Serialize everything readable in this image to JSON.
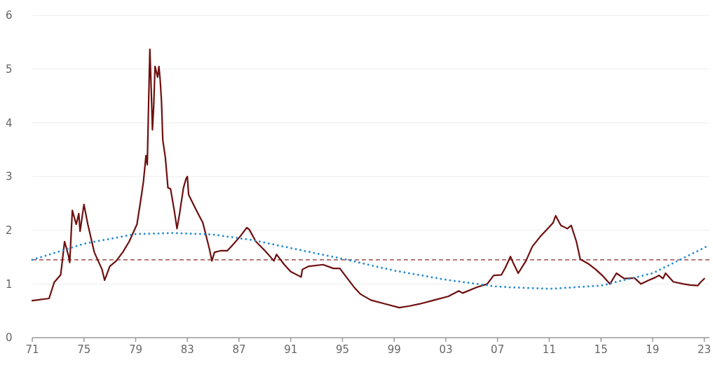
{
  "chart_data": {
    "type": "line",
    "xlim": [
      1971,
      2023.4
    ],
    "ylim": [
      0,
      6
    ],
    "yticks": [
      0,
      1,
      2,
      3,
      4,
      5,
      6
    ],
    "xticks": [
      {
        "value": 1971,
        "label": "71"
      },
      {
        "value": 1975,
        "label": "75"
      },
      {
        "value": 1979,
        "label": "79"
      },
      {
        "value": 1983,
        "label": "83"
      },
      {
        "value": 1987,
        "label": "87"
      },
      {
        "value": 1991,
        "label": "91"
      },
      {
        "value": 1995,
        "label": "95"
      },
      {
        "value": 1999,
        "label": "99"
      },
      {
        "value": 2003,
        "label": "03"
      },
      {
        "value": 2007,
        "label": "07"
      },
      {
        "value": 2011,
        "label": "11"
      },
      {
        "value": 2015,
        "label": "15"
      },
      {
        "value": 2019,
        "label": "19"
      },
      {
        "value": 2023,
        "label": "23"
      }
    ],
    "grid": "y",
    "ref_lines": [
      {
        "axis": "y",
        "value": 1.45,
        "color": "#8b2a2a",
        "line_style": "dashed"
      }
    ],
    "series": [
      {
        "color": "#6e0f0f",
        "line_style": "solid",
        "x": [
          1971.0,
          1972.3,
          1972.7,
          1973.2,
          1973.5,
          1973.8,
          1973.9,
          1974.1,
          1974.4,
          1974.6,
          1974.7,
          1975.0,
          1975.3,
          1975.8,
          1976.4,
          1976.6,
          1977.0,
          1977.5,
          1978.0,
          1978.5,
          1979.1,
          1979.4,
          1979.6,
          1979.8,
          1979.9,
          1980.0,
          1980.1,
          1980.2,
          1980.3,
          1980.4,
          1980.5,
          1980.7,
          1980.8,
          1980.9,
          1981.0,
          1981.1,
          1981.3,
          1981.5,
          1981.7,
          1982.0,
          1982.2,
          1982.4,
          1982.7,
          1982.9,
          1983.0,
          1983.1,
          1983.7,
          1984.2,
          1984.7,
          1984.9,
          1985.1,
          1985.6,
          1986.1,
          1986.6,
          1987.1,
          1987.6,
          1987.8,
          1988.3,
          1989.0,
          1989.7,
          1989.9,
          1990.5,
          1991.0,
          1991.8,
          1991.9,
          1992.4,
          1993.5,
          1994.3,
          1994.8,
          1995.3,
          1995.9,
          1996.4,
          1997.2,
          1998.3,
          1999.4,
          2000.2,
          2001.0,
          2002.1,
          2003.2,
          2004.0,
          2004.3,
          2005.4,
          2006.2,
          2006.7,
          2007.3,
          2007.6,
          2008.0,
          2008.2,
          2008.6,
          2009.2,
          2009.7,
          2010.3,
          2010.8,
          2011.3,
          2011.5,
          2011.9,
          2012.4,
          2012.7,
          2013.1,
          2013.4,
          2014.0,
          2014.6,
          2015.1,
          2015.7,
          2016.2,
          2016.8,
          2017.6,
          2018.1,
          2018.7,
          2019.2,
          2019.5,
          2019.8,
          2020.0,
          2020.6,
          2021.4,
          2021.9,
          2022.5,
          2022.7,
          2023.0
        ],
        "values": [
          0.69,
          0.73,
          1.03,
          1.17,
          1.79,
          1.53,
          1.4,
          2.37,
          2.11,
          2.31,
          1.98,
          2.48,
          2.11,
          1.59,
          1.27,
          1.07,
          1.33,
          1.43,
          1.59,
          1.79,
          2.11,
          2.57,
          2.9,
          3.39,
          3.22,
          4.33,
          5.37,
          4.66,
          3.87,
          4.33,
          5.05,
          4.85,
          5.05,
          4.79,
          4.4,
          3.68,
          3.35,
          2.79,
          2.77,
          2.35,
          2.03,
          2.31,
          2.79,
          2.96,
          3.0,
          2.66,
          2.37,
          2.14,
          1.66,
          1.43,
          1.59,
          1.62,
          1.62,
          1.75,
          1.89,
          2.05,
          2.01,
          1.79,
          1.62,
          1.43,
          1.55,
          1.36,
          1.23,
          1.13,
          1.27,
          1.33,
          1.36,
          1.29,
          1.29,
          1.13,
          0.94,
          0.81,
          0.7,
          0.63,
          0.56,
          0.59,
          0.63,
          0.7,
          0.77,
          0.87,
          0.83,
          0.94,
          1.0,
          1.16,
          1.17,
          1.3,
          1.51,
          1.4,
          1.2,
          1.43,
          1.7,
          1.88,
          2.01,
          2.14,
          2.27,
          2.09,
          2.03,
          2.09,
          1.79,
          1.46,
          1.38,
          1.27,
          1.16,
          1.0,
          1.2,
          1.1,
          1.11,
          1.0,
          1.07,
          1.12,
          1.16,
          1.1,
          1.2,
          1.04,
          1.0,
          0.98,
          0.97,
          1.03,
          1.1
        ]
      },
      {
        "color": "#2a8fd0",
        "line_style": "dotted",
        "x": [
          1971,
          1975,
          1979,
          1982,
          1985,
          1988,
          1991,
          1995,
          1999,
          2003,
          2007,
          2011,
          2015,
          2019,
          2023.2
        ],
        "values": [
          1.45,
          1.75,
          1.93,
          1.95,
          1.92,
          1.82,
          1.67,
          1.47,
          1.25,
          1.08,
          0.95,
          0.91,
          0.97,
          1.2,
          1.7
        ]
      }
    ]
  }
}
